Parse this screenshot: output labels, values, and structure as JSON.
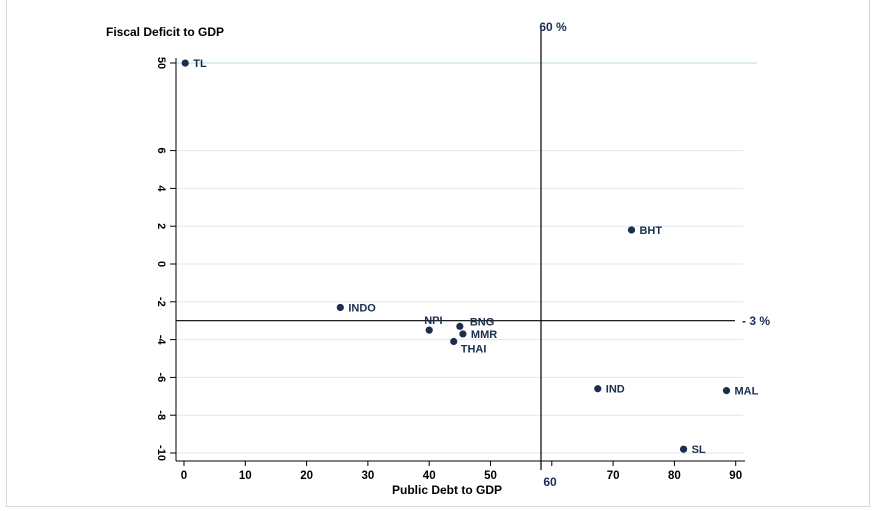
{
  "chart_data": {
    "type": "scatter",
    "ylabel": "Fiscal Deficit to GDP",
    "xlabel": "Public Debt to GDP",
    "xlim": [
      0,
      90
    ],
    "ylim": [
      -10,
      50
    ],
    "y_axis_break": "between 6 and 50",
    "x_ticks": [
      0,
      10,
      20,
      30,
      40,
      50,
      60,
      70,
      80,
      90
    ],
    "x_tick_labels": [
      "0",
      "10",
      "20",
      "30",
      "40",
      "50",
      "60",
      "70",
      "80",
      "90"
    ],
    "y_ticks": [
      -10,
      -8,
      -6,
      -4,
      -2,
      0,
      2,
      4,
      6,
      50
    ],
    "y_tick_labels": [
      "-10",
      "-8",
      "-6",
      "-4",
      "-2",
      "0",
      "2",
      "4",
      "6",
      "50"
    ],
    "grid": "horizontal",
    "reference_lines": [
      {
        "axis": "x",
        "value": 60,
        "label": "60 %",
        "label_text_bottom": "60"
      },
      {
        "axis": "y",
        "value": -3,
        "label": "- 3 %"
      }
    ],
    "points": [
      {
        "label": "TL",
        "x": 0.2,
        "y": 49
      },
      {
        "label": "BHT",
        "x": 73,
        "y": 1.8
      },
      {
        "label": "INDO",
        "x": 25.5,
        "y": -2.3
      },
      {
        "label": "NPI",
        "x": 40,
        "y": -3.5
      },
      {
        "label": "BNG",
        "x": 45,
        "y": -3.3
      },
      {
        "label": "MMR",
        "x": 45.5,
        "y": -3.7
      },
      {
        "label": "THAI",
        "x": 44,
        "y": -4.1
      },
      {
        "label": "IND",
        "x": 67.5,
        "y": -6.6
      },
      {
        "label": "MAL",
        "x": 88.5,
        "y": -6.7
      },
      {
        "label": "SL",
        "x": 81.5,
        "y": -9.8
      }
    ],
    "colors": {
      "marker": "#1a2e4f",
      "label": "#1a2e4f",
      "grid": "#dde8ee",
      "reference": "#000000"
    }
  }
}
